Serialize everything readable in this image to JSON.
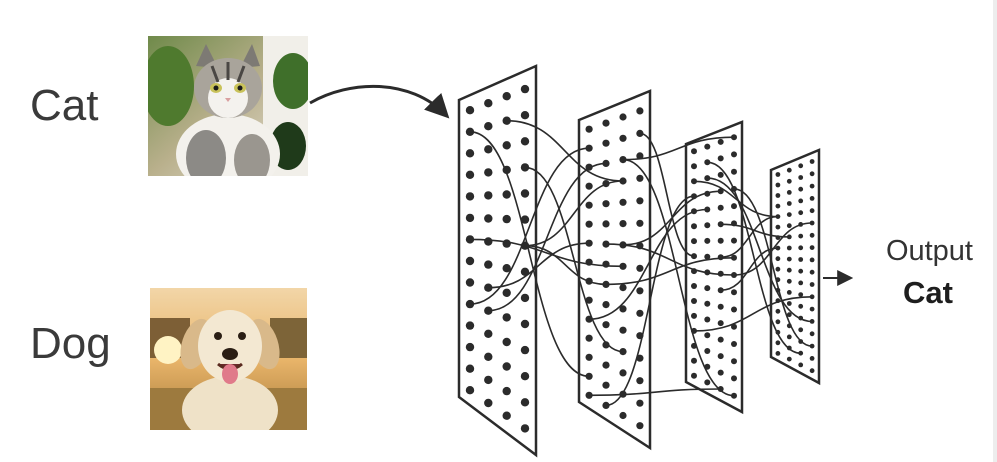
{
  "inputs": [
    {
      "label": "Cat",
      "image": "cat-photo"
    },
    {
      "label": "Dog",
      "image": "dog-photo"
    }
  ],
  "output": {
    "heading": "Output",
    "class": "Cat"
  },
  "network": {
    "layer_count": 4,
    "icon": "neural-network-layers"
  },
  "colors": {
    "ink": "#2b2b2b",
    "text": "#3a3a3a",
    "background": "#ffffff"
  }
}
